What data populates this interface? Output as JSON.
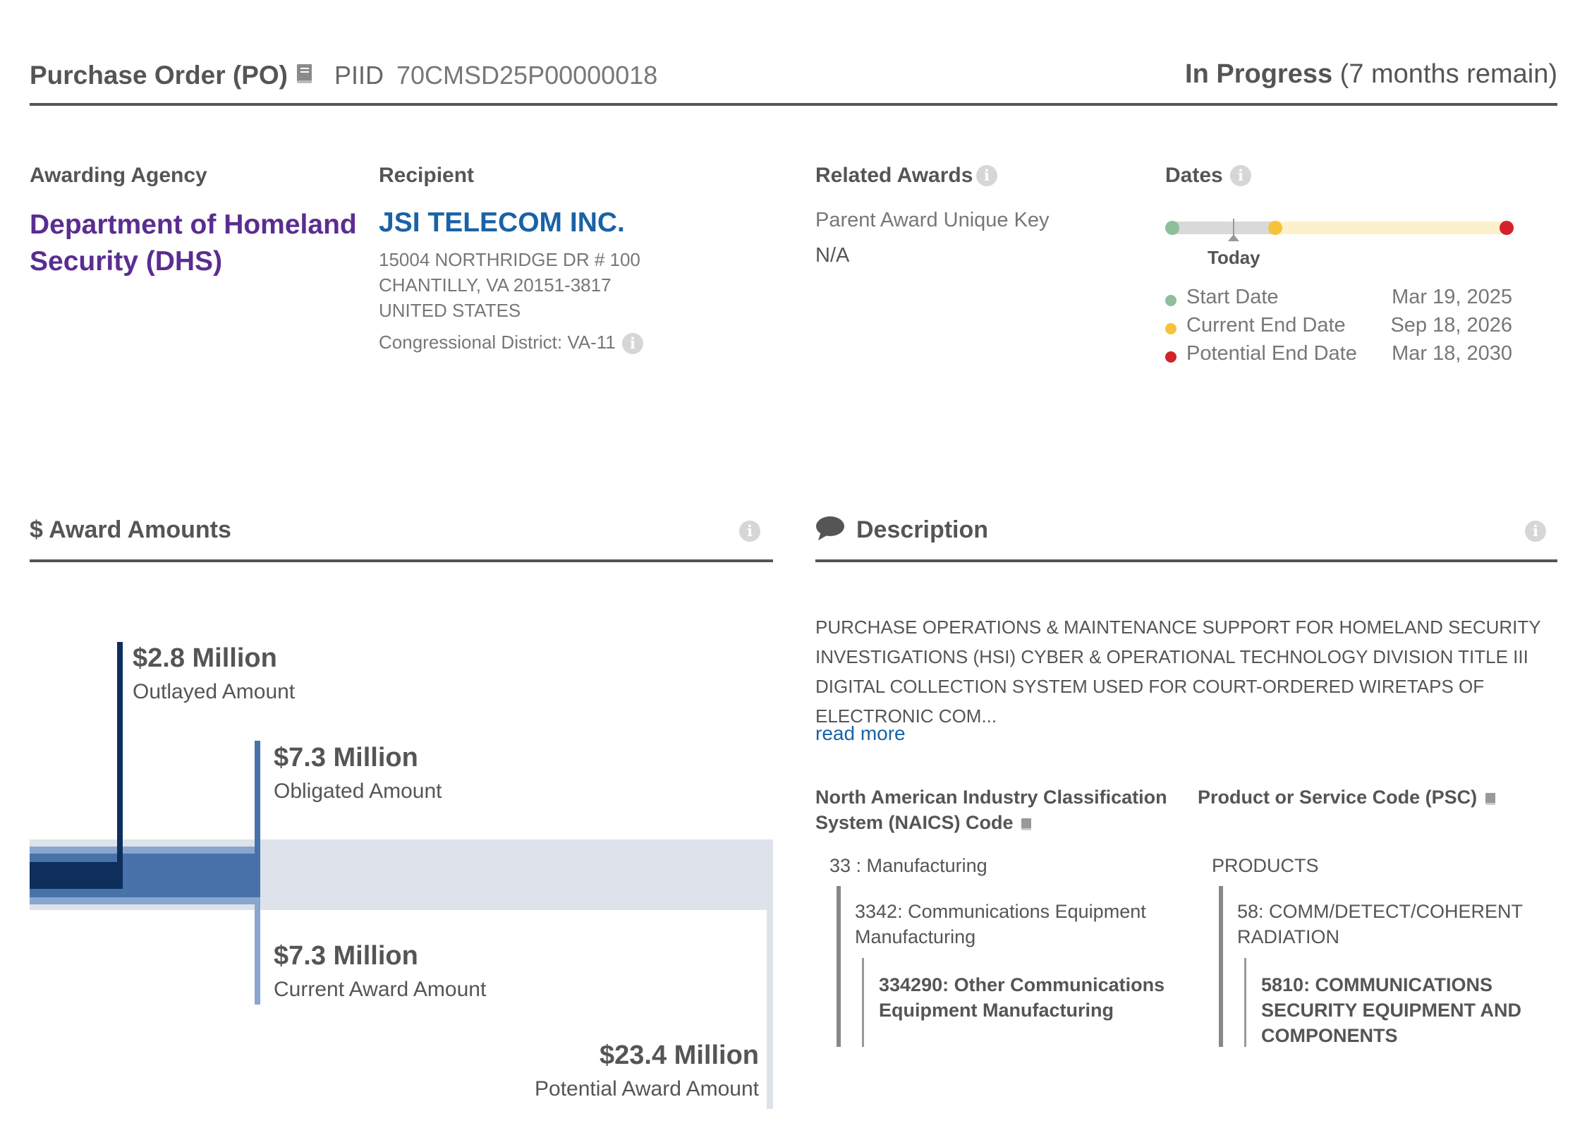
{
  "header": {
    "award_type": "Purchase Order (PO)",
    "piid_label": "PIID",
    "piid": "70CMSD25P00000018",
    "status": "In Progress",
    "status_detail": "(7 months remain)"
  },
  "agency": {
    "heading": "Awarding Agency",
    "name": "Department of Homeland Security (DHS)"
  },
  "recipient": {
    "heading": "Recipient",
    "name": "JSI TELECOM INC.",
    "address_line1": "15004 NORTHRIDGE DR # 100",
    "address_line2": "CHANTILLY, VA 20151-3817",
    "address_line3": "UNITED STATES",
    "congressional_district": "Congressional District: VA-11"
  },
  "related_awards": {
    "heading": "Related Awards",
    "parent_label": "Parent Award Unique Key",
    "parent_value": "N/A"
  },
  "dates": {
    "heading": "Dates",
    "today_label": "Today",
    "elapsed_fraction": 0.11,
    "current_end_fraction": 0.22,
    "items": [
      {
        "label": "Start Date",
        "value": "Mar 19, 2025",
        "color": "#8fbe9b"
      },
      {
        "label": "Current End Date",
        "value": "Sep 18, 2026",
        "color": "#f7c23b"
      },
      {
        "label": "Potential End Date",
        "value": "Mar 18, 2030",
        "color": "#d2232a"
      }
    ]
  },
  "award_amounts": {
    "title": "$ Award Amounts",
    "outlayed": {
      "amount": "$2.8 Million",
      "label": "Outlayed Amount",
      "value_millions": 2.8
    },
    "obligated": {
      "amount": "$7.3 Million",
      "label": "Obligated Amount",
      "value_millions": 7.3
    },
    "current": {
      "amount": "$7.3 Million",
      "label": "Current Award Amount",
      "value_millions": 7.3
    },
    "potential": {
      "amount": "$23.4 Million",
      "label": "Potential Award Amount",
      "value_millions": 23.4
    },
    "colors": {
      "outlayed": "#0e2e5c",
      "obligated": "#4773aa",
      "current": "#8aa6cf",
      "potential": "#dee3eb"
    }
  },
  "description": {
    "title": "Description",
    "text": "PURCHASE OPERATIONS & MAINTENANCE SUPPORT FOR HOMELAND SECURITY INVESTIGATIONS (HSI) CYBER & OPERATIONAL TECHNOLOGY DIVISION TITLE III DIGITAL COLLECTION SYSTEM USED FOR COURT-ORDERED WIRETAPS OF ELECTRONIC COM...",
    "read_more": "read more"
  },
  "naics": {
    "heading": "North American Industry Classification System (NAICS)  Code",
    "level1": "33 : Manufacturing",
    "level2": "3342: Communications Equipment Manufacturing",
    "level3": "334290: Other Communications Equipment Manufacturing"
  },
  "psc": {
    "heading": "Product or Service Code  (PSC)",
    "level1": "PRODUCTS",
    "level2": "58: COMM/DETECT/COHERENT RADIATION",
    "level3": "5810: COMMUNICATIONS SECURITY EQUIPMENT AND COMPONENTS"
  }
}
